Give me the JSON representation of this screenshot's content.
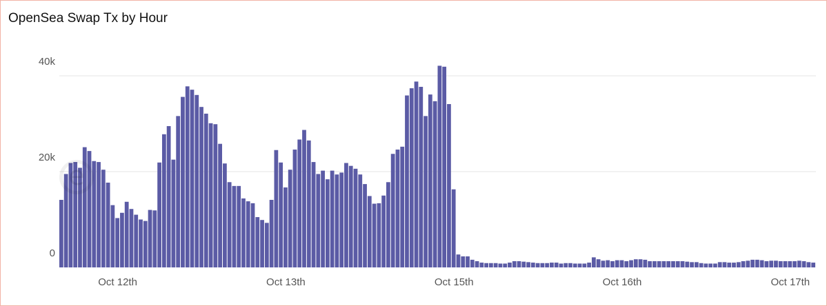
{
  "title": "OpenSea Swap Tx by Hour",
  "chart_data": {
    "type": "bar",
    "title": "OpenSea Swap Tx by Hour",
    "xlabel": "",
    "ylabel": "",
    "ylim": [
      0,
      42000
    ],
    "y_ticks": [
      {
        "value": 0,
        "label": "0"
      },
      {
        "value": 20000,
        "label": "20k"
      },
      {
        "value": 40000,
        "label": "40k"
      }
    ],
    "x_ticks": [
      {
        "index": 12,
        "label": "Oct 12th"
      },
      {
        "index": 48,
        "label": "Oct 13th"
      },
      {
        "index": 84,
        "label": "Oct 15th"
      },
      {
        "index": 120,
        "label": "Oct 16th"
      },
      {
        "index": 156,
        "label": "Oct 17th"
      }
    ],
    "grid": true,
    "bar_color": "#5b5ba5",
    "values": [
      14100,
      19500,
      21800,
      22000,
      20800,
      25100,
      24300,
      22200,
      22000,
      20400,
      17700,
      13000,
      10300,
      11400,
      13700,
      12200,
      11000,
      10000,
      9700,
      12000,
      11900,
      21900,
      27800,
      29500,
      22500,
      31600,
      35600,
      37800,
      37100,
      36000,
      33500,
      32100,
      30100,
      29900,
      25800,
      21700,
      17800,
      17000,
      17000,
      14400,
      13800,
      13400,
      10500,
      9900,
      9300,
      14100,
      24500,
      21900,
      16700,
      20400,
      24600,
      26700,
      28700,
      26500,
      22000,
      19500,
      20200,
      18400,
      20200,
      19400,
      19800,
      21800,
      21200,
      20600,
      19400,
      17400,
      14900,
      13300,
      13400,
      15000,
      17800,
      23700,
      24600,
      25200,
      35900,
      37400,
      38800,
      37700,
      31600,
      36100,
      34700,
      42100,
      41900,
      34100,
      16300,
      2700,
      2300,
      2300,
      1600,
      1300,
      1000,
      900,
      900,
      900,
      800,
      800,
      1000,
      1300,
      1300,
      1200,
      1100,
      1000,
      900,
      900,
      900,
      1000,
      1000,
      800,
      900,
      900,
      800,
      800,
      800,
      1000,
      2100,
      1700,
      1400,
      1500,
      1300,
      1500,
      1500,
      1300,
      1500,
      1700,
      1700,
      1600,
      1300,
      1300,
      1300,
      1300,
      1300,
      1300,
      1300,
      1300,
      1200,
      1100,
      1100,
      900,
      800,
      800,
      800,
      1100,
      1100,
      1000,
      1000,
      1100,
      1300,
      1400,
      1600,
      1600,
      1500,
      1300,
      1400,
      1400,
      1300,
      1300,
      1300,
      1300,
      1400,
      1300,
      1100,
      1000
    ]
  }
}
